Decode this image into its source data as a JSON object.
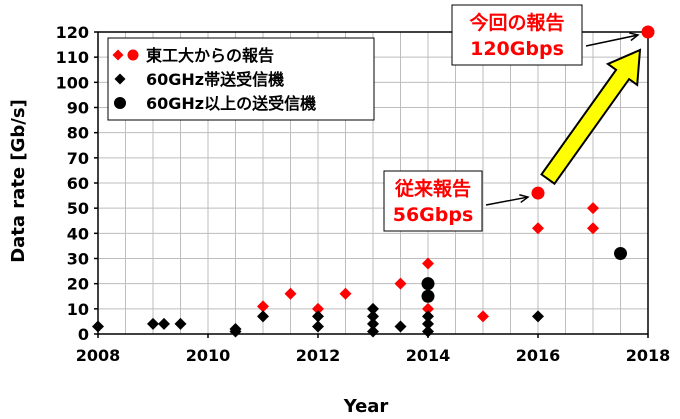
{
  "chart_data": {
    "type": "scatter",
    "xlabel": "Year",
    "ylabel": "Data rate [Gb/s]",
    "xlim": [
      2008,
      2018
    ],
    "ylim": [
      0,
      120
    ],
    "x_ticks": [
      "2008",
      "2010",
      "2012",
      "2014",
      "2016",
      "2018"
    ],
    "y_ticks": [
      "0",
      "10",
      "20",
      "30",
      "40",
      "50",
      "60",
      "70",
      "80",
      "90",
      "100",
      "110",
      "120"
    ],
    "grid": true,
    "legend_position": "top-left",
    "legend": [
      {
        "label": "東工大からの報告",
        "marker": "diamond+circle",
        "color": "#ff0000"
      },
      {
        "label": "60GHz帯送受信機",
        "marker": "diamond",
        "color": "#000000"
      },
      {
        "label": "60GHz以上の送受信機",
        "marker": "circle",
        "color": "#000000"
      }
    ],
    "series": [
      {
        "marker": "diamond",
        "color": "#ff0000",
        "points": [
          {
            "x": 2011.0,
            "y": 11
          },
          {
            "x": 2011.5,
            "y": 16
          },
          {
            "x": 2012.0,
            "y": 10
          },
          {
            "x": 2012.5,
            "y": 16
          },
          {
            "x": 2013.5,
            "y": 20
          },
          {
            "x": 2014.0,
            "y": 28
          },
          {
            "x": 2014.0,
            "y": 10
          },
          {
            "x": 2015.0,
            "y": 7
          },
          {
            "x": 2016.0,
            "y": 42
          },
          {
            "x": 2017.0,
            "y": 50
          },
          {
            "x": 2017.0,
            "y": 42
          }
        ]
      },
      {
        "marker": "circle",
        "color": "#ff0000",
        "points": [
          {
            "x": 2016.0,
            "y": 56
          },
          {
            "x": 2018.0,
            "y": 120
          }
        ]
      },
      {
        "marker": "diamond",
        "color": "#000000",
        "points": [
          {
            "x": 2008.0,
            "y": 3
          },
          {
            "x": 2009.0,
            "y": 4
          },
          {
            "x": 2009.2,
            "y": 4
          },
          {
            "x": 2009.5,
            "y": 4
          },
          {
            "x": 2010.5,
            "y": 2
          },
          {
            "x": 2010.5,
            "y": 1
          },
          {
            "x": 2011.0,
            "y": 7
          },
          {
            "x": 2012.0,
            "y": 7
          },
          {
            "x": 2012.0,
            "y": 3
          },
          {
            "x": 2013.0,
            "y": 10
          },
          {
            "x": 2013.0,
            "y": 7
          },
          {
            "x": 2013.0,
            "y": 4
          },
          {
            "x": 2013.0,
            "y": 1
          },
          {
            "x": 2013.5,
            "y": 3
          },
          {
            "x": 2014.0,
            "y": 7
          },
          {
            "x": 2014.0,
            "y": 4
          },
          {
            "x": 2014.0,
            "y": 1
          },
          {
            "x": 2016.0,
            "y": 7
          }
        ]
      },
      {
        "marker": "circle",
        "color": "#000000",
        "points": [
          {
            "x": 2014.0,
            "y": 20
          },
          {
            "x": 2014.0,
            "y": 15
          },
          {
            "x": 2017.5,
            "y": 32
          }
        ]
      }
    ],
    "annotations": [
      {
        "lines": [
          "従来報告",
          "56Gbps"
        ],
        "color": "#ff0000",
        "points_to": {
          "x": 2016.0,
          "y": 56
        }
      },
      {
        "lines": [
          "今回の報告",
          "120Gbps"
        ],
        "color": "#ff0000",
        "points_to": {
          "x": 2018.0,
          "y": 120
        }
      }
    ],
    "trend_arrow": {
      "from": {
        "x": 2016.0,
        "y": 56
      },
      "to": {
        "x": 2018.0,
        "y": 120
      },
      "fill": "#ffff00"
    }
  }
}
